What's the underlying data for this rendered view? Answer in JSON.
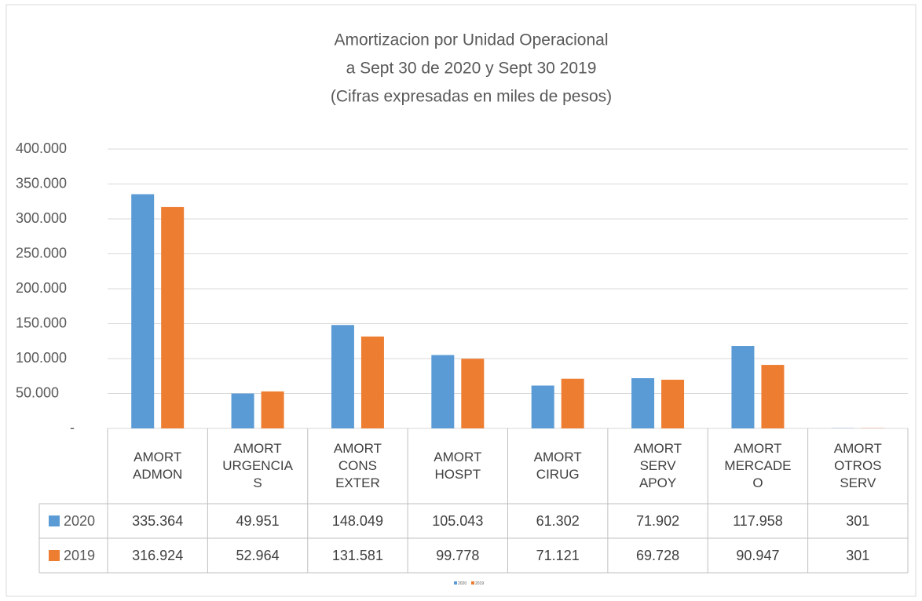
{
  "chart_data": {
    "type": "bar",
    "title": [
      "Amortizacion por Unidad Operacional",
      "a Sept 30 de 2020 y  Sept 30 2019",
      "(Cifras expresadas en miles de pesos)"
    ],
    "categories": [
      "AMORT ADMON",
      "AMORT URGENCIAS",
      "AMORT CONS EXTER",
      "AMORT HOSPT",
      "AMORT CIRUG",
      "AMORT SERV APOY",
      "AMORT MERCADEO",
      "AMORT OTROS SERV"
    ],
    "series": [
      {
        "name": "2020",
        "color": "#5b9bd5",
        "values": [
          335364,
          49951,
          148049,
          105043,
          61302,
          71902,
          117958,
          301
        ],
        "value_labels": [
          "335.364",
          "49.951",
          "148.049",
          "105.043",
          "61.302",
          "71.902",
          "117.958",
          "301"
        ]
      },
      {
        "name": "2019",
        "color": "#ed7d31",
        "values": [
          316924,
          52964,
          131581,
          99778,
          71121,
          69728,
          90947,
          301
        ],
        "value_labels": [
          "316.924",
          "52.964",
          "131.581",
          "99.778",
          "71.121",
          "69.728",
          "90.947",
          "301"
        ]
      }
    ],
    "ylim": [
      0,
      400000
    ],
    "yticks": [
      {
        "value": 0,
        "label": "-"
      },
      {
        "value": 50000,
        "label": "50.000"
      },
      {
        "value": 100000,
        "label": "100.000"
      },
      {
        "value": 150000,
        "label": "150.000"
      },
      {
        "value": 200000,
        "label": "200.000"
      },
      {
        "value": 250000,
        "label": "250.000"
      },
      {
        "value": 300000,
        "label": "300.000"
      },
      {
        "value": 350000,
        "label": "350.000"
      },
      {
        "value": 400000,
        "label": "400.000"
      }
    ],
    "grid": true
  }
}
